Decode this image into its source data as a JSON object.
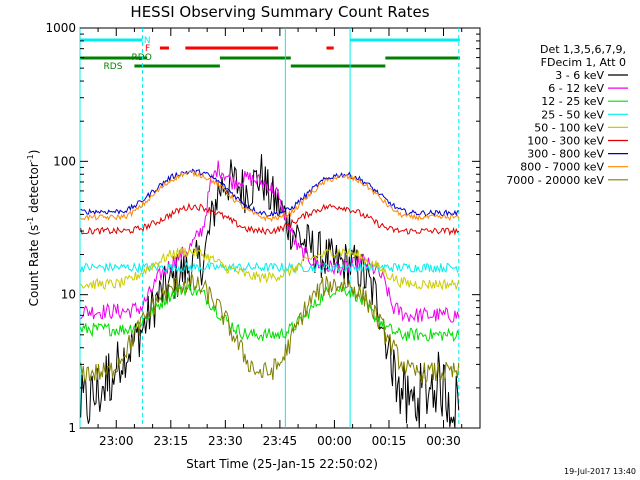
{
  "chart_data": {
    "type": "line",
    "title": "HESSI Observing Summary Count Rates",
    "xlabel": "Start Time (25-Jan-15 22:50:02)",
    "ylabel_main": "Count Rate (s",
    "ylabel_sup1": "-1",
    "ylabel_mid": " detector",
    "ylabel_sup2": "-1",
    "ylabel_end": ")",
    "yscale": "log",
    "ylim": [
      1,
      1000
    ],
    "xlim_minutes": [
      -9.97,
      100.03
    ],
    "xticks": [
      {
        "m": 0,
        "label": "23:00"
      },
      {
        "m": 15,
        "label": "23:15"
      },
      {
        "m": 30,
        "label": "23:30"
      },
      {
        "m": 45,
        "label": "23:45"
      },
      {
        "m": 60,
        "label": "00:00"
      },
      {
        "m": 75,
        "label": "00:15"
      },
      {
        "m": 90,
        "label": "00:30"
      }
    ],
    "yticks": [
      {
        "v": 1,
        "label": "1"
      },
      {
        "v": 10,
        "label": "10"
      },
      {
        "v": 100,
        "label": "100"
      },
      {
        "v": 1000,
        "label": "1000"
      }
    ],
    "legend_header": [
      "Det 1,3,5,6,7,9,",
      "FDecim 1, Att 0"
    ],
    "legend_position": "right",
    "series": [
      {
        "name": "3 - 6 keV",
        "color": "#000000",
        "m": [
          -10,
          -8,
          -4,
          0,
          4,
          8,
          10,
          12,
          16,
          20,
          24,
          28,
          30,
          32,
          36,
          40,
          42,
          44,
          46,
          48,
          50,
          52,
          56,
          60,
          64,
          66,
          68,
          72,
          74,
          76,
          78,
          80,
          82,
          84,
          86,
          88,
          90,
          92,
          94
        ],
        "v": [
          1.5,
          1.5,
          2,
          3,
          4,
          6,
          8,
          10,
          13,
          16,
          18,
          60,
          70,
          70,
          60,
          80,
          55,
          50,
          40,
          32,
          28,
          24,
          20,
          17,
          17,
          16,
          14,
          9,
          5,
          3,
          2,
          1.5,
          1.6,
          1.8,
          2,
          2.2,
          2,
          1.6,
          1.5
        ]
      },
      {
        "name": "6 - 12 keV",
        "color": "#ee00ee",
        "m": [
          -10,
          -2,
          0,
          3,
          7,
          9,
          12,
          16,
          20,
          24,
          26,
          28,
          30,
          32,
          34,
          36,
          40,
          44,
          45,
          46,
          48,
          50,
          54,
          58,
          60,
          64,
          66,
          68,
          70,
          72,
          74,
          76,
          80,
          84,
          88,
          92,
          94
        ],
        "v": [
          7.5,
          7.5,
          7.5,
          7.5,
          8,
          10,
          14,
          18,
          22,
          32,
          70,
          90,
          80,
          70,
          72,
          75,
          70,
          60,
          48,
          42,
          30,
          22,
          18,
          16,
          16,
          16,
          17,
          18,
          16,
          15,
          12,
          8,
          7,
          7,
          7,
          7,
          7
        ]
      },
      {
        "name": "12 - 25 keV",
        "color": "#00dd00",
        "m": [
          -10,
          -2,
          0,
          3,
          6,
          9,
          12,
          15,
          18,
          21,
          24,
          27,
          30,
          33,
          36,
          39,
          42,
          45,
          48,
          51,
          54,
          57,
          60,
          63,
          66,
          69,
          72,
          75,
          78,
          81,
          84,
          87,
          90,
          93,
          95
        ],
        "v": [
          5.5,
          5.5,
          5.5,
          5.5,
          6,
          7,
          8.5,
          10,
          11,
          11,
          10,
          8,
          6.5,
          5.5,
          5,
          5,
          5,
          5,
          5.5,
          6.5,
          8,
          10,
          11,
          11,
          10,
          8,
          6.5,
          5.5,
          5,
          5,
          5,
          5,
          5,
          5,
          5
        ]
      },
      {
        "name": "25 - 50 keV",
        "color": "#00eeee",
        "m": [
          -10,
          -2,
          0,
          3,
          6,
          9,
          12,
          15,
          18,
          21,
          24,
          27,
          30,
          33,
          36,
          39,
          42,
          45,
          48,
          51,
          54,
          57,
          60,
          63,
          66,
          69,
          72,
          75,
          78,
          81,
          84,
          87,
          90,
          93,
          95
        ],
        "v": [
          16,
          16,
          16,
          16,
          16,
          16,
          16,
          16,
          16,
          16,
          16,
          16,
          16,
          16,
          16,
          16,
          16,
          16,
          16,
          16,
          16,
          16,
          16,
          16,
          16,
          16,
          16,
          16,
          16,
          16,
          16,
          16,
          16,
          16,
          16
        ]
      },
      {
        "name": "50 - 100 keV",
        "color": "#cccc00",
        "m": [
          -10,
          -2,
          0,
          3,
          6,
          9,
          12,
          15,
          18,
          21,
          24,
          27,
          30,
          33,
          36,
          39,
          42,
          45,
          48,
          51,
          54,
          57,
          60,
          63,
          66,
          69,
          72,
          75,
          78,
          81,
          84,
          87,
          90,
          93,
          95
        ],
        "v": [
          12,
          12,
          12,
          12.5,
          14,
          16,
          18,
          20,
          21,
          21,
          20,
          18,
          16,
          15,
          14,
          13.5,
          13.5,
          14,
          15,
          17,
          19,
          20,
          21,
          21,
          20,
          18,
          16,
          14,
          12.5,
          12,
          12,
          12,
          12,
          12,
          12
        ]
      },
      {
        "name": "100 - 300 keV",
        "color": "#dd0000",
        "m": [
          -10,
          -2,
          0,
          3,
          6,
          9,
          12,
          15,
          18,
          21,
          24,
          27,
          30,
          33,
          36,
          39,
          42,
          45,
          48,
          51,
          54,
          57,
          60,
          63,
          66,
          69,
          72,
          75,
          78,
          81,
          84,
          87,
          90,
          93,
          95
        ],
        "v": [
          30,
          30,
          30,
          30,
          31,
          33,
          36,
          40,
          44,
          46,
          45,
          42,
          38,
          34,
          31,
          30,
          30,
          31,
          34,
          38,
          42,
          45,
          46,
          45,
          42,
          38,
          34,
          31,
          30,
          30,
          30,
          30,
          30,
          30,
          30
        ]
      },
      {
        "name": "300 - 800 keV",
        "color": "#0000cc",
        "m": [
          -10,
          -2,
          0,
          3,
          6,
          9,
          12,
          15,
          18,
          21,
          24,
          27,
          30,
          33,
          36,
          39,
          42,
          45,
          48,
          51,
          54,
          57,
          60,
          63,
          66,
          69,
          72,
          75,
          78,
          81,
          84,
          87,
          90,
          93,
          95
        ],
        "v": [
          42,
          42,
          42,
          43,
          48,
          56,
          66,
          76,
          82,
          84,
          82,
          74,
          64,
          54,
          46,
          42,
          40,
          41,
          44,
          52,
          62,
          72,
          78,
          80,
          76,
          68,
          58,
          49,
          43,
          41,
          41,
          41,
          41,
          41,
          41
        ]
      },
      {
        "name": "800 - 7000 keV",
        "color": "#ff8800",
        "m": [
          -10,
          -2,
          0,
          3,
          6,
          9,
          12,
          15,
          18,
          21,
          24,
          27,
          30,
          33,
          36,
          39,
          42,
          45,
          48,
          51,
          54,
          57,
          60,
          63,
          66,
          69,
          72,
          75,
          78,
          81,
          84,
          87,
          90,
          93,
          95
        ],
        "v": [
          38,
          38,
          38,
          39,
          44,
          52,
          62,
          72,
          80,
          82,
          78,
          70,
          60,
          50,
          43,
          39,
          37,
          38,
          41,
          49,
          59,
          69,
          75,
          77,
          73,
          65,
          55,
          46,
          40,
          38,
          38,
          38,
          38,
          38,
          38
        ]
      },
      {
        "name": "7000 - 20000 keV",
        "color": "#808000",
        "m": [
          -10,
          -2,
          0,
          3,
          6,
          9,
          12,
          15,
          18,
          21,
          24,
          27,
          30,
          33,
          36,
          39,
          42,
          45,
          48,
          51,
          54,
          57,
          60,
          63,
          66,
          69,
          72,
          75,
          78,
          81,
          84,
          87,
          90,
          93,
          95
        ],
        "v": [
          2.6,
          2.6,
          3,
          4,
          5.5,
          7.5,
          9.5,
          11,
          12,
          12,
          11,
          9,
          6.5,
          4.5,
          3.2,
          2.6,
          2.6,
          3,
          4.5,
          7,
          9.5,
          11.5,
          12,
          12,
          11,
          9,
          6.5,
          4.5,
          3.2,
          2.6,
          2.6,
          2.6,
          2.6,
          2.6,
          2.6
        ]
      }
    ],
    "flags": {
      "N_label": "N",
      "F_label": "F",
      "RDO_label": "RDO",
      "RDS_label": "RDS",
      "night_color": "#00eeee",
      "flare_color": "#ff0000",
      "saa_color": "#008000"
    },
    "vertical_markers": [
      {
        "m": -9.97,
        "style": "solid",
        "color": "#00eeee"
      },
      {
        "m": 7.2,
        "style": "dashed",
        "color": "#00eeee"
      },
      {
        "m": 46.5,
        "style": "solid",
        "color": "#00eeee"
      },
      {
        "m": 64.3,
        "style": "solid",
        "color": "#00eeee"
      },
      {
        "m": 94.2,
        "style": "dashed",
        "color": "#00eeee"
      }
    ]
  },
  "footer": {
    "timestamp": "19-Jul-2017 13:40"
  }
}
